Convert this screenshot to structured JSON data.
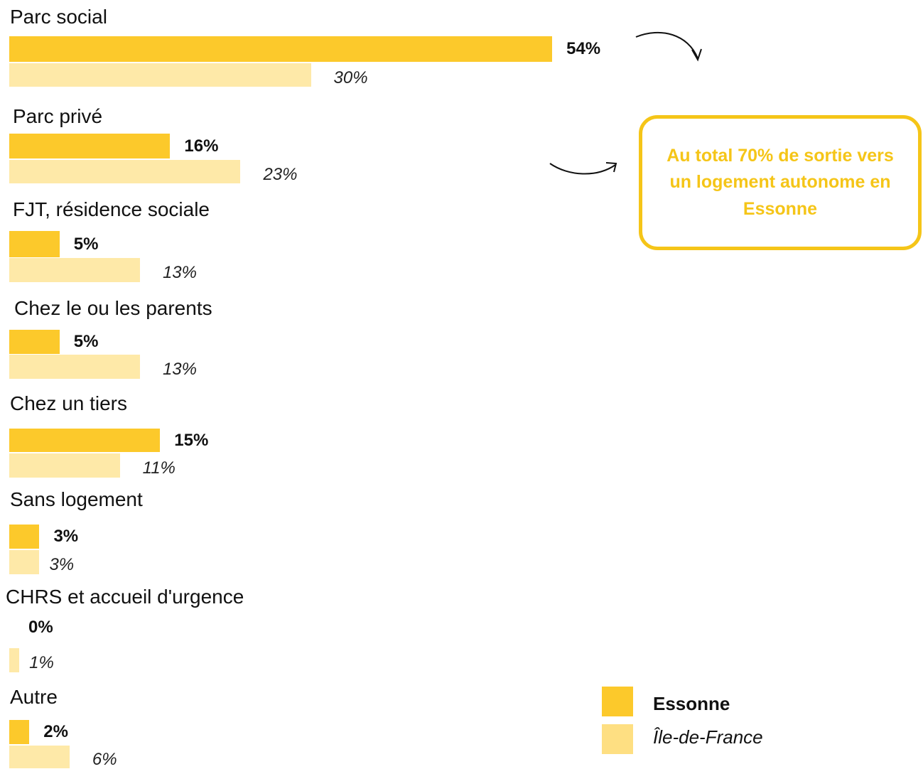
{
  "colors": {
    "primary": "#fcc92b",
    "secondary": "#fee9a8",
    "accent": "#f5c518"
  },
  "chart_data": {
    "type": "bar",
    "orientation": "horizontal",
    "categories": [
      "Parc social",
      "Parc privé",
      "FJT, résidence sociale",
      "Chez le ou les parents",
      "Chez un tiers",
      "Sans logement",
      "CHRS et accueil d'urgence",
      "Autre"
    ],
    "series": [
      {
        "name": "Essonne",
        "values": [
          54,
          16,
          5,
          5,
          15,
          3,
          0,
          2
        ],
        "labels": [
          "54%",
          "16%",
          "5%",
          "5%",
          "15%",
          "3%",
          "0%",
          "2%"
        ]
      },
      {
        "name": "Île-de-France",
        "values": [
          30,
          23,
          13,
          13,
          11,
          3,
          1,
          6
        ],
        "labels": [
          "30%",
          "23%",
          "13%",
          "13%",
          "11%",
          "3%",
          "1%",
          "6%"
        ]
      }
    ],
    "unit": "%",
    "grid": false,
    "legend": "bottom-right"
  },
  "callout": {
    "text": "Au total 70% de sortie vers un logement autonome en Essonne"
  },
  "legend": {
    "items": [
      "Essonne",
      "Île-de-France"
    ]
  }
}
